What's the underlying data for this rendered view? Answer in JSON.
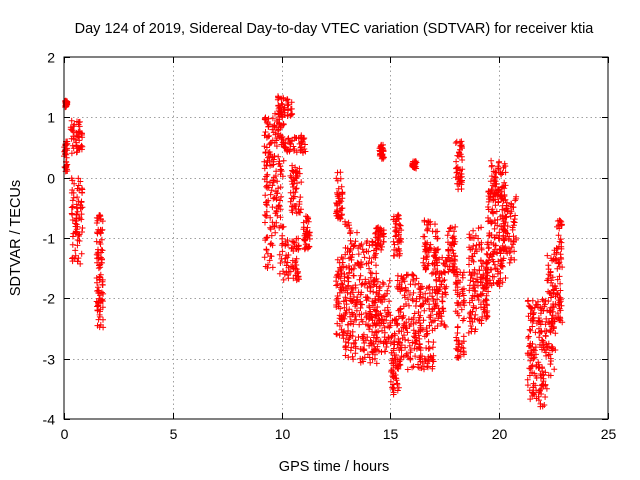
{
  "chart_data": {
    "type": "scatter",
    "title": "Day 124 of 2019, Sidereal Day-to-day VTEC variation (SDTVAR) for receiver ktia",
    "xlabel": "GPS time / hours",
    "ylabel": "SDTVAR / TECUs",
    "xlim": [
      0,
      25
    ],
    "ylim": [
      -4,
      2
    ],
    "x_ticks": [
      "0",
      "5",
      "10",
      "15",
      "20",
      "25"
    ],
    "y_ticks": [
      "2",
      "1",
      "0",
      "-1",
      "-2",
      "-3",
      "-4"
    ],
    "grid": true,
    "marker": "+",
    "color": "#ff0000",
    "series": [
      {
        "name": "SDTVAR",
        "clusters": [
          {
            "x": [
              0.0,
              0.15
            ],
            "y": [
              0.1,
              0.6
            ]
          },
          {
            "x": [
              0.05,
              0.15
            ],
            "y": [
              1.15,
              1.28
            ]
          },
          {
            "x": [
              0.3,
              0.85
            ],
            "y": [
              0.4,
              0.95
            ]
          },
          {
            "x": [
              0.35,
              0.85
            ],
            "y": [
              -1.45,
              0.0
            ]
          },
          {
            "x": [
              1.5,
              1.8
            ],
            "y": [
              -1.5,
              -0.6
            ]
          },
          {
            "x": [
              1.5,
              1.8
            ],
            "y": [
              -2.55,
              -1.6
            ]
          },
          {
            "x": [
              9.2,
              9.6
            ],
            "y": [
              -1.5,
              1.0
            ]
          },
          {
            "x": [
              9.6,
              10.1
            ],
            "y": [
              -1.0,
              1.1
            ]
          },
          {
            "x": [
              9.8,
              10.5
            ],
            "y": [
              1.0,
              1.35
            ]
          },
          {
            "x": [
              10.1,
              11.1
            ],
            "y": [
              0.4,
              0.7
            ]
          },
          {
            "x": [
              9.9,
              10.8
            ],
            "y": [
              -1.7,
              -1.0
            ]
          },
          {
            "x": [
              10.4,
              10.9
            ],
            "y": [
              -0.6,
              0.2
            ]
          },
          {
            "x": [
              11.0,
              11.3
            ],
            "y": [
              -1.2,
              -0.6
            ]
          },
          {
            "x": [
              12.5,
              12.8
            ],
            "y": [
              -0.7,
              0.1
            ]
          },
          {
            "x": [
              12.5,
              12.9
            ],
            "y": [
              -2.7,
              -1.3
            ]
          },
          {
            "x": [
              12.9,
              13.5
            ],
            "y": [
              -3.1,
              -0.7
            ]
          },
          {
            "x": [
              13.5,
              14.4
            ],
            "y": [
              -3.1,
              -1.05
            ]
          },
          {
            "x": [
              14.3,
              14.7
            ],
            "y": [
              -1.2,
              -0.8
            ]
          },
          {
            "x": [
              14.2,
              15.0
            ],
            "y": [
              -2.9,
              -1.7
            ]
          },
          {
            "x": [
              14.5,
              14.7
            ],
            "y": [
              0.3,
              0.55
            ]
          },
          {
            "x": [
              15.0,
              15.4
            ],
            "y": [
              -3.65,
              -2.3
            ]
          },
          {
            "x": [
              15.1,
              15.5
            ],
            "y": [
              -1.3,
              -0.6
            ]
          },
          {
            "x": [
              15.3,
              16.4
            ],
            "y": [
              -3.2,
              -1.6
            ]
          },
          {
            "x": [
              16.0,
              16.2
            ],
            "y": [
              0.15,
              0.28
            ]
          },
          {
            "x": [
              16.3,
              17.0
            ],
            "y": [
              -3.2,
              -1.8
            ]
          },
          {
            "x": [
              16.5,
              17.2
            ],
            "y": [
              -1.6,
              -0.7
            ]
          },
          {
            "x": [
              17.0,
              17.6
            ],
            "y": [
              -2.5,
              -1.3
            ]
          },
          {
            "x": [
              17.6,
              18.0
            ],
            "y": [
              -1.6,
              -0.8
            ]
          },
          {
            "x": [
              18.0,
              18.4
            ],
            "y": [
              -3.0,
              -1.5
            ]
          },
          {
            "x": [
              18.0,
              18.3
            ],
            "y": [
              -0.2,
              0.65
            ]
          },
          {
            "x": [
              18.6,
              19.2
            ],
            "y": [
              -2.6,
              -0.8
            ]
          },
          {
            "x": [
              19.2,
              19.5
            ],
            "y": [
              -2.4,
              -1.4
            ]
          },
          {
            "x": [
              19.4,
              20.3
            ],
            "y": [
              -1.8,
              -0.1
            ]
          },
          {
            "x": [
              19.6,
              20.3
            ],
            "y": [
              -0.4,
              0.3
            ]
          },
          {
            "x": [
              20.1,
              20.8
            ],
            "y": [
              -1.5,
              -0.3
            ]
          },
          {
            "x": [
              21.3,
              21.8
            ],
            "y": [
              -3.7,
              -2.0
            ]
          },
          {
            "x": [
              21.8,
              22.2
            ],
            "y": [
              -3.8,
              -2.0
            ]
          },
          {
            "x": [
              22.2,
              22.6
            ],
            "y": [
              -3.3,
              -1.2
            ]
          },
          {
            "x": [
              22.6,
              22.9
            ],
            "y": [
              -2.4,
              -0.7
            ]
          }
        ]
      }
    ]
  }
}
